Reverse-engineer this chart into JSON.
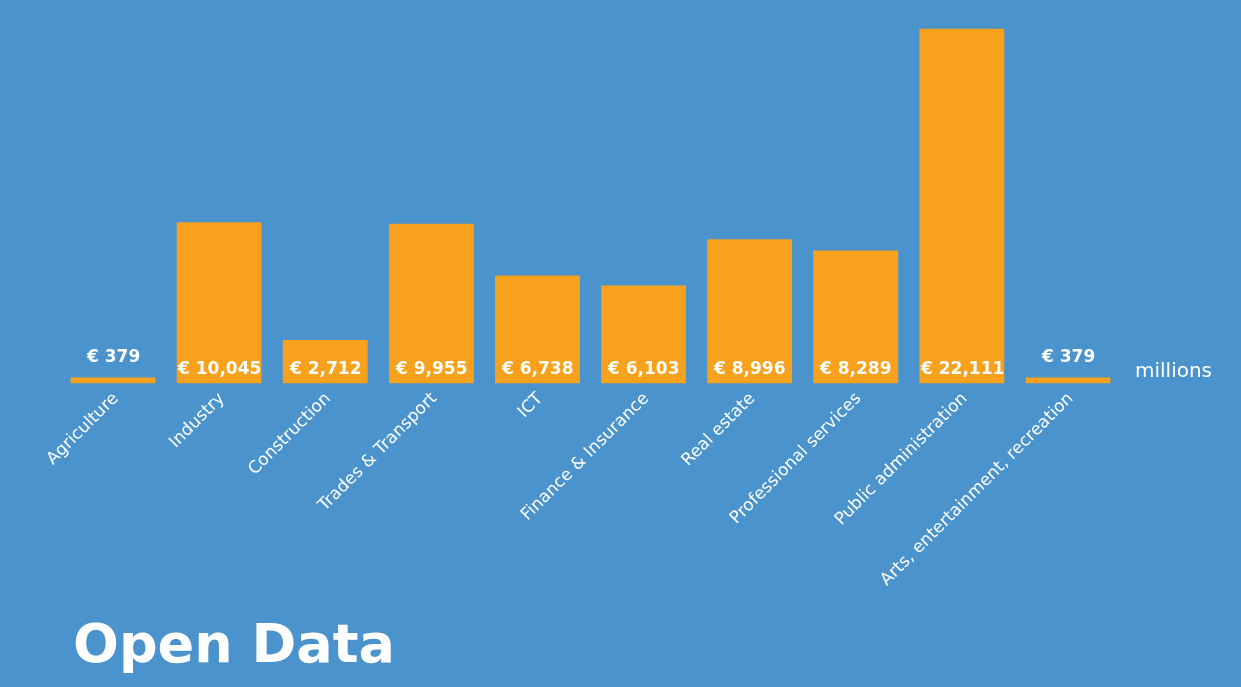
{
  "chart_data": {
    "type": "bar",
    "title": "Open Data",
    "categories": [
      "Agriculture",
      "Industry",
      "Construction",
      "Trades & Transport",
      "ICT",
      "Finance & Insurance",
      "Real estate",
      "Professional services",
      "Public administration",
      "Arts, entertainment, recreation"
    ],
    "values": [
      379,
      10045,
      2712,
      9955,
      6738,
      6103,
      8996,
      8289,
      22111,
      379
    ],
    "value_labels": [
      "€ 379",
      "€ 10,045",
      "€ 2,712",
      "€ 9,955",
      "€ 6,738",
      "€ 6,103",
      "€ 8,996",
      "€ 8,289",
      "€ 22,111",
      "€ 379"
    ],
    "color": "#f7a11c",
    "annotations": [
      "millions"
    ]
  }
}
